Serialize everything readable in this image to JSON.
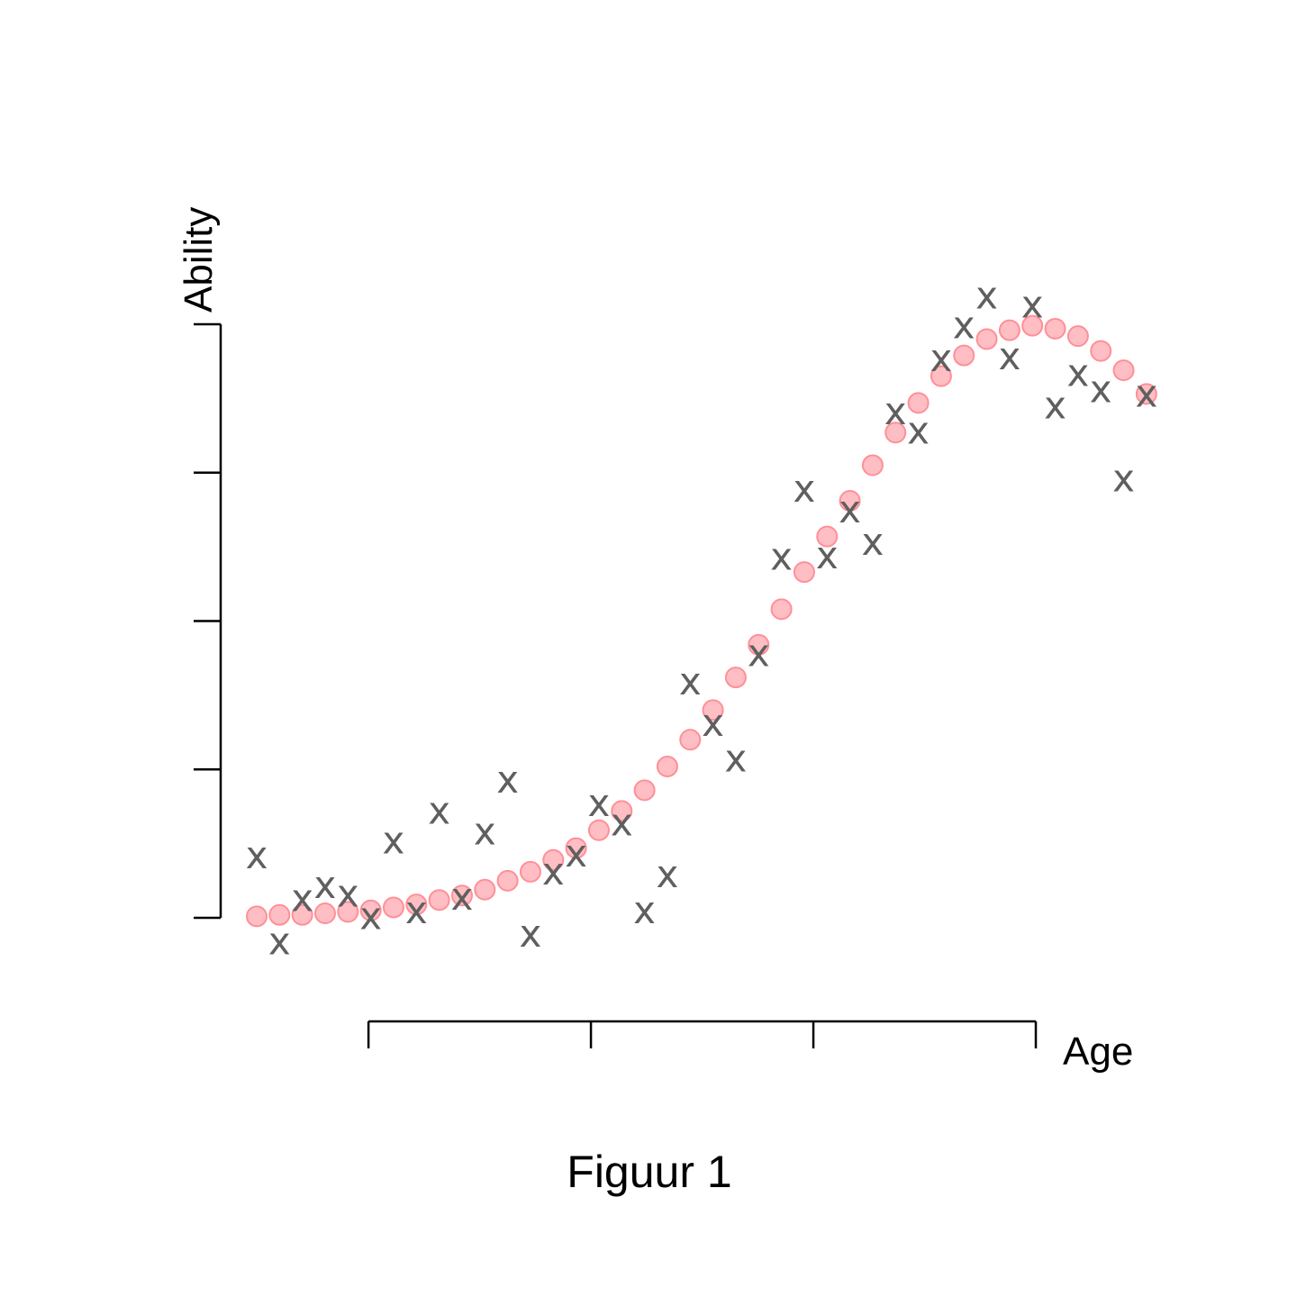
{
  "chart_data": {
    "type": "scatter",
    "title": "",
    "caption": "Figuur 1",
    "xlabel": "Age",
    "ylabel": "Ability",
    "x_ticks": [
      5.9,
      15.65,
      25.4,
      35.15
    ],
    "y_ticks": [
      0,
      1,
      2,
      3,
      4
    ],
    "xlim": [
      1,
      40
    ],
    "ylim": [
      0,
      4
    ],
    "grid": false,
    "tick_labels_shown": false,
    "x": [
      1,
      2,
      3,
      4,
      5,
      6,
      7,
      8,
      9,
      10,
      11,
      12,
      13,
      14,
      15,
      16,
      17,
      18,
      19,
      20,
      21,
      22,
      23,
      24,
      25,
      26,
      27,
      28,
      29,
      30,
      31,
      32,
      33,
      34,
      35,
      36,
      37,
      38,
      39,
      40
    ],
    "series": [
      {
        "marker": "circle",
        "color": "#ffb3b8",
        "values": [
          0.01,
          0.02,
          0.02,
          0.03,
          0.04,
          0.05,
          0.07,
          0.09,
          0.12,
          0.15,
          0.19,
          0.25,
          0.31,
          0.39,
          0.47,
          0.59,
          0.72,
          0.86,
          1.02,
          1.2,
          1.4,
          1.62,
          1.84,
          2.08,
          2.33,
          2.57,
          2.81,
          3.05,
          3.27,
          3.47,
          3.65,
          3.79,
          3.9,
          3.96,
          3.99,
          3.97,
          3.92,
          3.82,
          3.69,
          3.53
        ]
      },
      {
        "marker": "x",
        "color": "#5f5f5f",
        "values": [
          0.42,
          -0.16,
          0.13,
          0.22,
          0.16,
          0.01,
          0.52,
          0.05,
          0.72,
          0.14,
          0.58,
          0.93,
          -0.11,
          0.31,
          0.43,
          0.77,
          0.64,
          0.05,
          0.29,
          1.59,
          1.31,
          1.07,
          1.78,
          2.43,
          2.89,
          2.44,
          2.75,
          2.53,
          3.41,
          3.28,
          3.77,
          3.99,
          4.19,
          3.78,
          4.13,
          3.45,
          3.67,
          3.56,
          2.96,
          3.53
        ]
      }
    ]
  }
}
